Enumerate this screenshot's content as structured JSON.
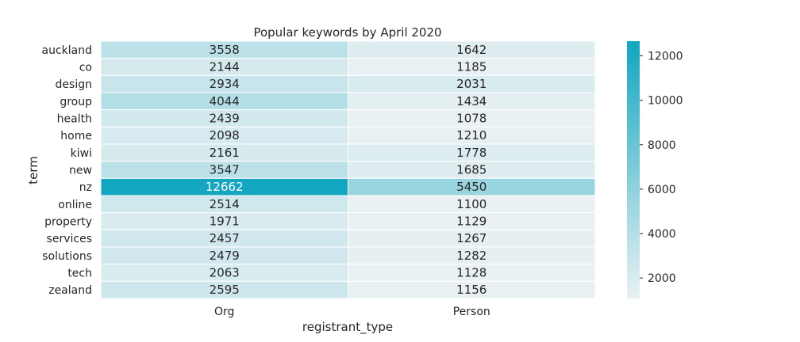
{
  "chart_data": {
    "type": "heatmap",
    "title": "Popular keywords by April 2020",
    "xlabel": "registrant_type",
    "ylabel": "term",
    "columns": [
      "Org",
      "Person"
    ],
    "rows": [
      "auckland",
      "co",
      "design",
      "group",
      "health",
      "home",
      "kiwi",
      "new",
      "nz",
      "online",
      "property",
      "services",
      "solutions",
      "tech",
      "zealand"
    ],
    "values": [
      [
        3558,
        1642
      ],
      [
        2144,
        1185
      ],
      [
        2934,
        2031
      ],
      [
        4044,
        1434
      ],
      [
        2439,
        1078
      ],
      [
        2098,
        1210
      ],
      [
        2161,
        1778
      ],
      [
        3547,
        1685
      ],
      [
        12662,
        5450
      ],
      [
        2514,
        1100
      ],
      [
        1971,
        1129
      ],
      [
        2457,
        1267
      ],
      [
        2479,
        1282
      ],
      [
        2063,
        1128
      ],
      [
        2595,
        1156
      ]
    ],
    "color_range": [
      1078,
      12662
    ],
    "colorbar_ticks": [
      2000,
      4000,
      6000,
      8000,
      10000,
      12000
    ],
    "colormap": [
      "#eaf1f3",
      "#12a6c1"
    ]
  }
}
